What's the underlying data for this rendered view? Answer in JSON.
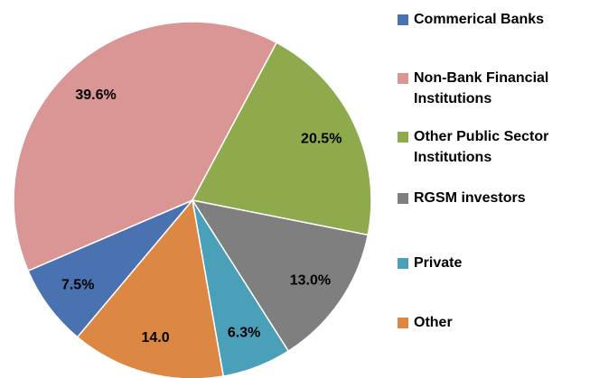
{
  "chart_data": {
    "type": "pie",
    "categories": [
      "Commerical Banks",
      "Non-Bank Financial Institutions",
      "Other Public Sector Institutions",
      "RGSM investors",
      "Private",
      "Other"
    ],
    "values": [
      7.5,
      39.6,
      20.5,
      13.0,
      6.3,
      14.0
    ],
    "value_labels": [
      "7.5%",
      "39.6%",
      "20.5%",
      "13.0%",
      "6.3%",
      "14.0"
    ],
    "colors": [
      "#4a72b0",
      "#d99694",
      "#8faa4d",
      "#7f7f7f",
      "#4aa0b8",
      "#dc8744"
    ],
    "legend": "right"
  }
}
